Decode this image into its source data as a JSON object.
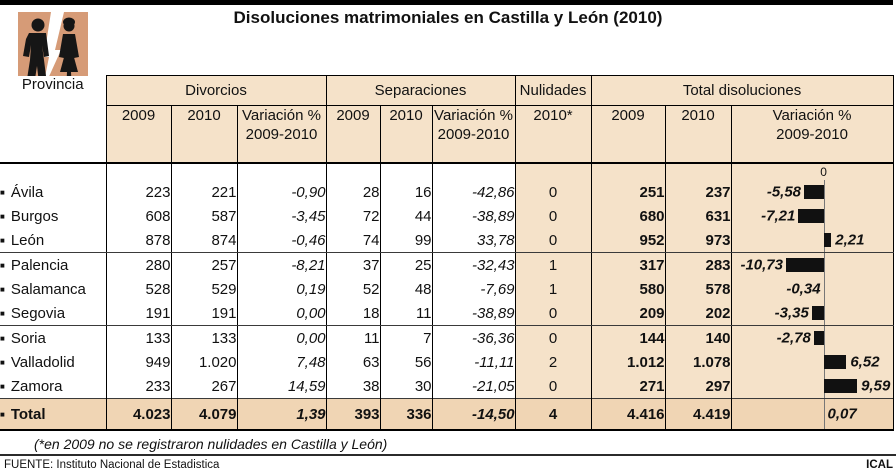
{
  "title": "Disoluciones matrimoniales en Castilla y León (2010)",
  "colors": {
    "header_bg": "#F5E2C9",
    "total_row_bg": "#F0D5B4",
    "icon_bg": "#D69B77",
    "bar": "#111111"
  },
  "icon": {
    "name": "divorce-couple-icon"
  },
  "table": {
    "province_header": "Provincia",
    "groups": [
      {
        "label": "Divorcios",
        "cols": [
          "2009",
          "2010",
          "Variación %\n2009-2010"
        ]
      },
      {
        "label": "Separaciones",
        "cols": [
          "2009",
          "2010",
          "Variación %\n2009-2010"
        ]
      },
      {
        "label": "Nulidades",
        "cols": [
          "2010*"
        ]
      },
      {
        "label": "Total disoluciones",
        "cols": [
          "2009",
          "2010",
          "Variación %\n2009-2010"
        ]
      }
    ],
    "zero_label": "0",
    "rows": [
      {
        "name": "Ávila",
        "div_2009": "223",
        "div_2010": "221",
        "div_var": "-0,90",
        "sep_2009": "28",
        "sep_2010": "16",
        "sep_var": "-42,86",
        "nul_2010": "0",
        "tot_2009": "251",
        "tot_2010": "237",
        "tot_var_label": "-5,58",
        "tot_var": -5.58,
        "group_end": false
      },
      {
        "name": "Burgos",
        "div_2009": "608",
        "div_2010": "587",
        "div_var": "-3,45",
        "sep_2009": "72",
        "sep_2010": "44",
        "sep_var": "-38,89",
        "nul_2010": "0",
        "tot_2009": "680",
        "tot_2010": "631",
        "tot_var_label": "-7,21",
        "tot_var": -7.21,
        "group_end": false
      },
      {
        "name": "León",
        "div_2009": "878",
        "div_2010": "874",
        "div_var": "-0,46",
        "sep_2009": "74",
        "sep_2010": "99",
        "sep_var": "33,78",
        "nul_2010": "0",
        "tot_2009": "952",
        "tot_2010": "973",
        "tot_var_label": "2,21",
        "tot_var": 2.21,
        "group_end": true
      },
      {
        "name": "Palencia",
        "div_2009": "280",
        "div_2010": "257",
        "div_var": "-8,21",
        "sep_2009": "37",
        "sep_2010": "25",
        "sep_var": "-32,43",
        "nul_2010": "1",
        "tot_2009": "317",
        "tot_2010": "283",
        "tot_var_label": "-10,73",
        "tot_var": -10.73,
        "group_end": false
      },
      {
        "name": "Salamanca",
        "div_2009": "528",
        "div_2010": "529",
        "div_var": "0,19",
        "sep_2009": "52",
        "sep_2010": "48",
        "sep_var": "-7,69",
        "nul_2010": "1",
        "tot_2009": "580",
        "tot_2010": "578",
        "tot_var_label": "-0,34",
        "tot_var": -0.34,
        "group_end": false
      },
      {
        "name": "Segovia",
        "div_2009": "191",
        "div_2010": "191",
        "div_var": "0,00",
        "sep_2009": "18",
        "sep_2010": "11",
        "sep_var": "-38,89",
        "nul_2010": "0",
        "tot_2009": "209",
        "tot_2010": "202",
        "tot_var_label": "-3,35",
        "tot_var": -3.35,
        "group_end": true
      },
      {
        "name": "Soria",
        "div_2009": "133",
        "div_2010": "133",
        "div_var": "0,00",
        "sep_2009": "11",
        "sep_2010": "7",
        "sep_var": "-36,36",
        "nul_2010": "0",
        "tot_2009": "144",
        "tot_2010": "140",
        "tot_var_label": "-2,78",
        "tot_var": -2.78,
        "group_end": false
      },
      {
        "name": "Valladolid",
        "div_2009": "949",
        "div_2010": "1.020",
        "div_var": "7,48",
        "sep_2009": "63",
        "sep_2010": "56",
        "sep_var": "-11,11",
        "nul_2010": "2",
        "tot_2009": "1.012",
        "tot_2010": "1.078",
        "tot_var_label": "6,52",
        "tot_var": 6.52,
        "group_end": false
      },
      {
        "name": "Zamora",
        "div_2009": "233",
        "div_2010": "267",
        "div_var": "14,59",
        "sep_2009": "38",
        "sep_2010": "30",
        "sep_var": "-21,05",
        "nul_2010": "0",
        "tot_2009": "271",
        "tot_2010": "297",
        "tot_var_label": "9,59",
        "tot_var": 9.59,
        "group_end": false
      }
    ],
    "total_row": {
      "name": "Total",
      "div_2009": "4.023",
      "div_2010": "4.079",
      "div_var": "1,39",
      "sep_2009": "393",
      "sep_2010": "336",
      "sep_var": "-14,50",
      "nul_2010": "4",
      "tot_2009": "4.416",
      "tot_2010": "4.419",
      "tot_var_label": "0,07",
      "tot_var": 0.07
    }
  },
  "chart_data": {
    "type": "bar",
    "orientation": "horizontal",
    "title": "Variación % 2009-2010 (Total disoluciones)",
    "categories": [
      "Ávila",
      "Burgos",
      "León",
      "Palencia",
      "Salamanca",
      "Segovia",
      "Soria",
      "Valladolid",
      "Zamora",
      "Total"
    ],
    "values": [
      -5.58,
      -7.21,
      2.21,
      -10.73,
      -0.34,
      -3.35,
      -2.78,
      6.52,
      9.59,
      0.07
    ],
    "xlim": [
      -12,
      12
    ],
    "zero_line": true,
    "grid": false,
    "bar_color": "#111111"
  },
  "footnote": "(*en 2009 no se registraron nulidades en Castilla y León)",
  "source": "FUENTE: Instituto Nacional de Estadistica",
  "credit": "ICAL"
}
